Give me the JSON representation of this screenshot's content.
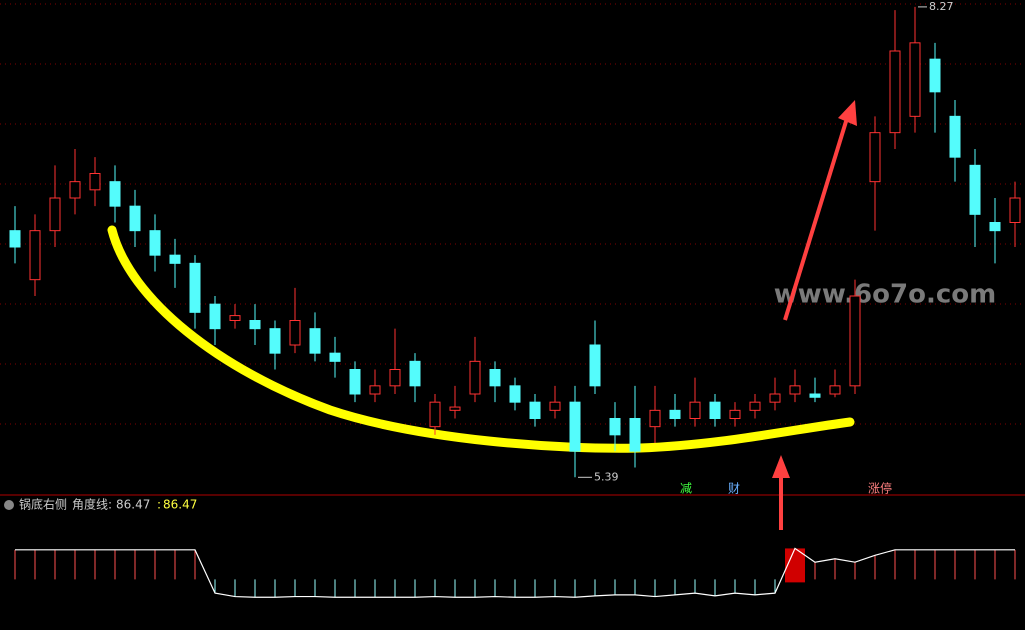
{
  "chart_data": {
    "type": "candlestick",
    "ylim": [
      5.3,
      8.3
    ],
    "up_color": "#ff3232",
    "down_color": "#54fcfc",
    "ohlc": [
      [
        6.9,
        7.05,
        6.7,
        6.8
      ],
      [
        6.6,
        7.0,
        6.5,
        6.9
      ],
      [
        6.9,
        7.3,
        6.8,
        7.1
      ],
      [
        7.1,
        7.4,
        7.0,
        7.2
      ],
      [
        7.15,
        7.35,
        7.05,
        7.25
      ],
      [
        7.2,
        7.3,
        6.95,
        7.05
      ],
      [
        7.05,
        7.15,
        6.8,
        6.9
      ],
      [
        6.9,
        7.0,
        6.65,
        6.75
      ],
      [
        6.75,
        6.85,
        6.55,
        6.7
      ],
      [
        6.7,
        6.75,
        6.3,
        6.4
      ],
      [
        6.45,
        6.5,
        6.2,
        6.3
      ],
      [
        6.35,
        6.45,
        6.3,
        6.38
      ],
      [
        6.35,
        6.45,
        6.2,
        6.3
      ],
      [
        6.3,
        6.35,
        6.05,
        6.15
      ],
      [
        6.2,
        6.55,
        6.15,
        6.35
      ],
      [
        6.3,
        6.4,
        6.1,
        6.15
      ],
      [
        6.15,
        6.25,
        6.0,
        6.1
      ],
      [
        6.05,
        6.1,
        5.85,
        5.9
      ],
      [
        5.9,
        6.05,
        5.85,
        5.95
      ],
      [
        5.95,
        6.3,
        5.9,
        6.05
      ],
      [
        6.1,
        6.15,
        5.85,
        5.95
      ],
      [
        5.7,
        5.9,
        5.65,
        5.85
      ],
      [
        5.8,
        5.95,
        5.75,
        5.82
      ],
      [
        5.9,
        6.25,
        5.85,
        6.1
      ],
      [
        6.05,
        6.1,
        5.85,
        5.95
      ],
      [
        5.95,
        6.0,
        5.8,
        5.85
      ],
      [
        5.85,
        5.9,
        5.7,
        5.75
      ],
      [
        5.8,
        5.95,
        5.75,
        5.85
      ],
      [
        5.85,
        5.95,
        5.39,
        5.55
      ],
      [
        6.2,
        6.35,
        5.9,
        5.95
      ],
      [
        5.75,
        5.85,
        5.55,
        5.65
      ],
      [
        5.75,
        5.95,
        5.45,
        5.55
      ],
      [
        5.7,
        5.95,
        5.6,
        5.8
      ],
      [
        5.8,
        5.9,
        5.7,
        5.75
      ],
      [
        5.75,
        6.0,
        5.7,
        5.85
      ],
      [
        5.85,
        5.9,
        5.7,
        5.75
      ],
      [
        5.75,
        5.85,
        5.7,
        5.8
      ],
      [
        5.8,
        5.9,
        5.75,
        5.85
      ],
      [
        5.85,
        6.0,
        5.8,
        5.9
      ],
      [
        5.9,
        6.05,
        5.85,
        5.95
      ],
      [
        5.9,
        6.0,
        5.85,
        5.88
      ],
      [
        5.9,
        6.05,
        5.88,
        5.95
      ],
      [
        5.95,
        6.6,
        5.9,
        6.5
      ],
      [
        7.2,
        7.6,
        6.9,
        7.5
      ],
      [
        7.5,
        8.25,
        7.4,
        8.0
      ],
      [
        7.6,
        8.27,
        7.5,
        8.05
      ],
      [
        7.95,
        8.05,
        7.5,
        7.75
      ],
      [
        7.6,
        7.7,
        7.2,
        7.35
      ],
      [
        7.3,
        7.4,
        6.8,
        7.0
      ],
      [
        6.95,
        7.1,
        6.7,
        6.9
      ],
      [
        6.95,
        7.2,
        6.8,
        7.1
      ]
    ],
    "high_label": "8.27",
    "low_label": "5.39",
    "signals": [
      "减",
      "财",
      "涨停"
    ],
    "watermark": "www.6o7o.com",
    "indicator": {
      "name": "锅底右侧",
      "line_label": "角度线:",
      "separator": ":",
      "value": 86.47,
      "ylim": [
        -60,
        100
      ],
      "values": [
        86,
        86,
        86,
        86,
        86,
        86,
        86,
        86,
        86,
        86,
        -40,
        -50,
        -52,
        -52,
        -50,
        -50,
        -52,
        -52,
        -52,
        -52,
        -52,
        -50,
        -52,
        -52,
        -50,
        -52,
        -52,
        -50,
        -52,
        -48,
        -45,
        -45,
        -50,
        -45,
        -40,
        -48,
        -40,
        -45,
        -40,
        90,
        50,
        60,
        50,
        70,
        86,
        86,
        86,
        86,
        86,
        86,
        86
      ]
    }
  }
}
